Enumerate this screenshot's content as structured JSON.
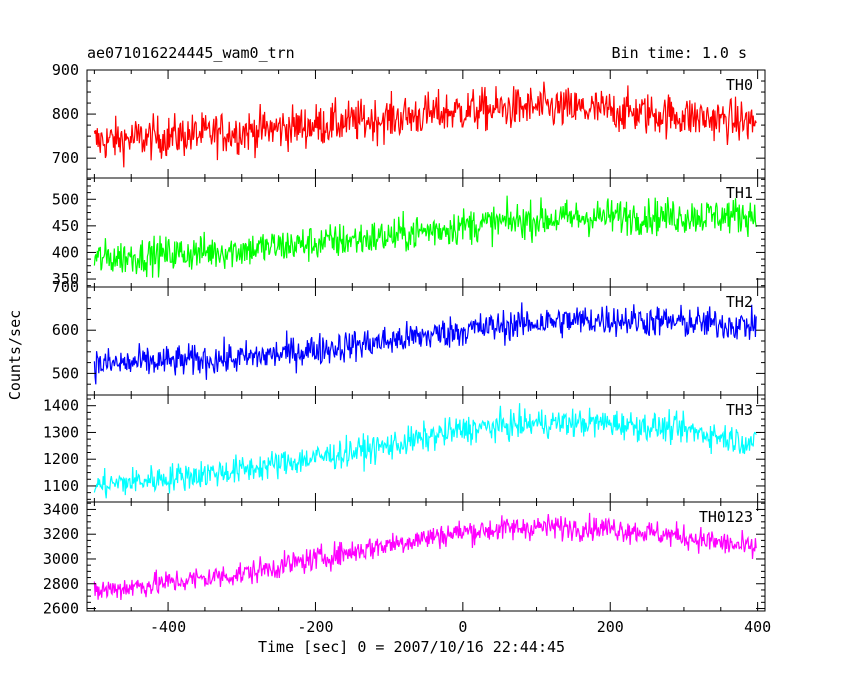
{
  "title_left": "ae071016224445_wam0_trn",
  "title_right": "Bin time: 1.0 s",
  "chart_data": {
    "type": "line",
    "x_range": [
      -510,
      410
    ],
    "x_ticks": [
      -400,
      -200,
      0,
      200,
      400
    ],
    "xlabel": "Time [sec] 0 = 2007/10/16 22:44:45",
    "ylabel": "Counts/sec",
    "x_sampling": {
      "start": -500,
      "stop": 398,
      "step": 1
    },
    "series": [
      {
        "name": "TH0",
        "color": "#ff0000",
        "ylim": [
          655,
          900
        ],
        "yticks": [
          700,
          800
        ],
        "yticks_extra": [
          900
        ],
        "trend_x": [
          -500,
          -300,
          -100,
          0,
          100,
          200,
          300,
          398
        ],
        "trend_y": [
          738,
          760,
          790,
          808,
          815,
          808,
          795,
          780
        ],
        "noise_sd": 34
      },
      {
        "name": "TH1",
        "color": "#00ff00",
        "ylim": [
          335,
          540
        ],
        "yticks": [
          350,
          400,
          450,
          500
        ],
        "trend_x": [
          -500,
          -300,
          -100,
          0,
          100,
          200,
          300,
          398
        ],
        "trend_y": [
          388,
          405,
          430,
          450,
          462,
          468,
          468,
          470
        ],
        "noise_sd": 24
      },
      {
        "name": "TH2",
        "color": "#0000ff",
        "ylim": [
          450,
          700
        ],
        "yticks": [
          500,
          600
        ],
        "yticks_extra": [
          700
        ],
        "trend_x": [
          -500,
          -300,
          -100,
          0,
          100,
          200,
          300,
          398
        ],
        "trend_y": [
          520,
          535,
          575,
          600,
          618,
          625,
          618,
          610
        ],
        "noise_sd": 26
      },
      {
        "name": "TH3",
        "color": "#00ffff",
        "ylim": [
          1040,
          1440
        ],
        "yticks": [
          1100,
          1200,
          1300,
          1400
        ],
        "trend_x": [
          -500,
          -300,
          -100,
          0,
          100,
          200,
          300,
          398
        ],
        "trend_y": [
          1100,
          1160,
          1250,
          1310,
          1335,
          1335,
          1310,
          1260
        ],
        "noise_sd": 38
      },
      {
        "name": "TH0123",
        "color": "#ff00ff",
        "ylim": [
          2580,
          3460
        ],
        "yticks": [
          2600,
          2800,
          3000,
          3200,
          3400
        ],
        "trend_x": [
          -500,
          -300,
          -100,
          0,
          100,
          200,
          300,
          398
        ],
        "trend_y": [
          2740,
          2880,
          3120,
          3220,
          3260,
          3250,
          3180,
          3080
        ],
        "noise_sd": 70
      }
    ]
  }
}
